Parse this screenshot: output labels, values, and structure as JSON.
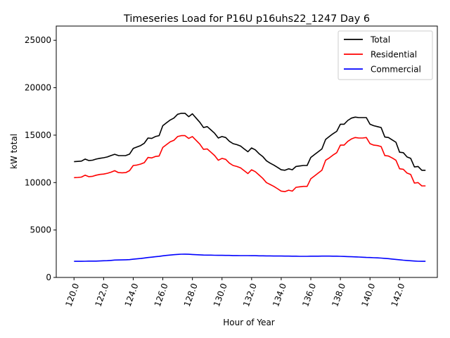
{
  "chart_data": {
    "type": "line",
    "title": "Timeseries Load for P16U p16uhs22_1247  Day 6",
    "xlabel": "Hour of Year",
    "ylabel": "kW total",
    "xlim": [
      118.8,
      144.55
    ],
    "ylim": [
      0,
      26500
    ],
    "xticks": [
      120,
      122,
      124,
      126,
      128,
      130,
      132,
      134,
      136,
      138,
      140,
      142
    ],
    "xtick_labels": [
      "120.0",
      "122.0",
      "124.0",
      "126.0",
      "128.0",
      "130.0",
      "132.0",
      "134.0",
      "136.0",
      "138.0",
      "140.0",
      "142.0"
    ],
    "yticks": [
      0,
      5000,
      10000,
      15000,
      20000,
      25000
    ],
    "ytick_labels": [
      "0",
      "5000",
      "10000",
      "15000",
      "20000",
      "25000"
    ],
    "grid": false,
    "legend_position": "top-right",
    "x_start": 120.0,
    "x_step": 0.25,
    "series": [
      {
        "name": "Total",
        "color": "#000000",
        "values": [
          12200,
          12230,
          12260,
          12480,
          12320,
          12360,
          12480,
          12560,
          12620,
          12700,
          12850,
          12980,
          12850,
          12840,
          12850,
          13000,
          13600,
          13750,
          13900,
          14150,
          14700,
          14650,
          14850,
          14950,
          16000,
          16300,
          16600,
          16800,
          17200,
          17300,
          17300,
          16950,
          17250,
          16800,
          16350,
          15800,
          15900,
          15550,
          15200,
          14700,
          14850,
          14750,
          14350,
          14100,
          14000,
          13850,
          13550,
          13250,
          13650,
          13450,
          13050,
          12750,
          12300,
          12050,
          11850,
          11600,
          11350,
          11300,
          11450,
          11350,
          11700,
          11750,
          11800,
          11800,
          12650,
          12950,
          13250,
          13550,
          14550,
          14850,
          15150,
          15400,
          16150,
          16150,
          16550,
          16800,
          16900,
          16850,
          16850,
          16850,
          16150,
          16000,
          15900,
          15800,
          14800,
          14750,
          14500,
          14250,
          13200,
          13150,
          12700,
          12550,
          11650,
          11700,
          11300,
          11300
        ]
      },
      {
        "name": "Residential",
        "color": "#ff0000",
        "values": [
          10520,
          10540,
          10580,
          10780,
          10620,
          10660,
          10780,
          10860,
          10900,
          10980,
          11100,
          11250,
          11050,
          11030,
          11050,
          11250,
          11800,
          11850,
          11950,
          12100,
          12650,
          12600,
          12750,
          12800,
          13700,
          14000,
          14300,
          14450,
          14850,
          14950,
          14950,
          14650,
          14850,
          14450,
          14050,
          13500,
          13550,
          13200,
          12850,
          12350,
          12550,
          12450,
          12050,
          11800,
          11700,
          11550,
          11250,
          10950,
          11350,
          11150,
          10800,
          10450,
          10000,
          9800,
          9600,
          9350,
          9100,
          9050,
          9200,
          9100,
          9500,
          9550,
          9600,
          9600,
          10400,
          10700,
          11000,
          11300,
          12350,
          12600,
          12900,
          13150,
          13950,
          13950,
          14350,
          14600,
          14750,
          14700,
          14700,
          14750,
          14100,
          13950,
          13900,
          13800,
          12850,
          12800,
          12600,
          12350,
          11450,
          11400,
          11000,
          10850,
          9950,
          10000,
          9650,
          9650
        ]
      },
      {
        "name": "Commercial",
        "color": "#0000ff",
        "values": [
          1700,
          1700,
          1700,
          1710,
          1720,
          1720,
          1720,
          1740,
          1760,
          1770,
          1800,
          1830,
          1840,
          1850,
          1860,
          1880,
          1920,
          1960,
          2000,
          2050,
          2100,
          2140,
          2180,
          2220,
          2280,
          2320,
          2360,
          2400,
          2430,
          2450,
          2460,
          2440,
          2420,
          2400,
          2380,
          2360,
          2350,
          2350,
          2340,
          2330,
          2330,
          2320,
          2320,
          2310,
          2310,
          2300,
          2300,
          2300,
          2290,
          2290,
          2280,
          2280,
          2270,
          2270,
          2260,
          2260,
          2260,
          2250,
          2250,
          2240,
          2240,
          2230,
          2230,
          2230,
          2240,
          2240,
          2240,
          2250,
          2250,
          2250,
          2240,
          2240,
          2230,
          2210,
          2200,
          2180,
          2170,
          2150,
          2130,
          2110,
          2100,
          2080,
          2060,
          2040,
          2010,
          1980,
          1940,
          1900,
          1860,
          1820,
          1790,
          1760,
          1730,
          1710,
          1700,
          1700
        ]
      }
    ]
  }
}
